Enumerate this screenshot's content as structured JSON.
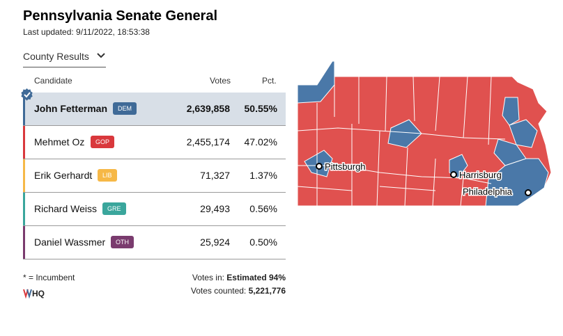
{
  "header": {
    "title": "Pennsylvania Senate General",
    "updated": "Last updated: 9/11/2022, 18:53:38"
  },
  "view_select": {
    "label": "County Results"
  },
  "table": {
    "col_candidate": "Candidate",
    "col_votes": "Votes",
    "col_pct": "Pct.",
    "rows": [
      {
        "name": "John Fetterman",
        "party": "DEM",
        "votes": "2,639,858",
        "pct": "50.55%",
        "color": "#3f6a97",
        "winner": true
      },
      {
        "name": "Mehmet Oz",
        "party": "GOP",
        "votes": "2,455,174",
        "pct": "47.02%",
        "color": "#d9383c",
        "winner": false
      },
      {
        "name": "Erik Gerhardt",
        "party": "LIB",
        "votes": "71,327",
        "pct": "1.37%",
        "color": "#f6b847",
        "winner": false
      },
      {
        "name": "Richard Weiss",
        "party": "GRE",
        "votes": "29,493",
        "pct": "0.56%",
        "color": "#3aa69c",
        "winner": false
      },
      {
        "name": "Daniel Wassmer",
        "party": "OTH",
        "votes": "25,924",
        "pct": "0.50%",
        "color": "#7a3b6e",
        "winner": false
      }
    ]
  },
  "footer": {
    "incumbent_note": "* = Incumbent",
    "votes_in_label": "Votes in:",
    "votes_in_value": "Estimated 94%",
    "votes_counted_label": "Votes counted:",
    "votes_counted_value": "5,221,776",
    "logo_text": "DDHQ"
  },
  "map": {
    "colors": {
      "dem": "#4a78a8",
      "gop": "#e0514f",
      "border": "#ffffff"
    },
    "cities": [
      {
        "name": "Pittsburgh"
      },
      {
        "name": "Harrisburg"
      },
      {
        "name": "Philadelphia"
      }
    ]
  }
}
